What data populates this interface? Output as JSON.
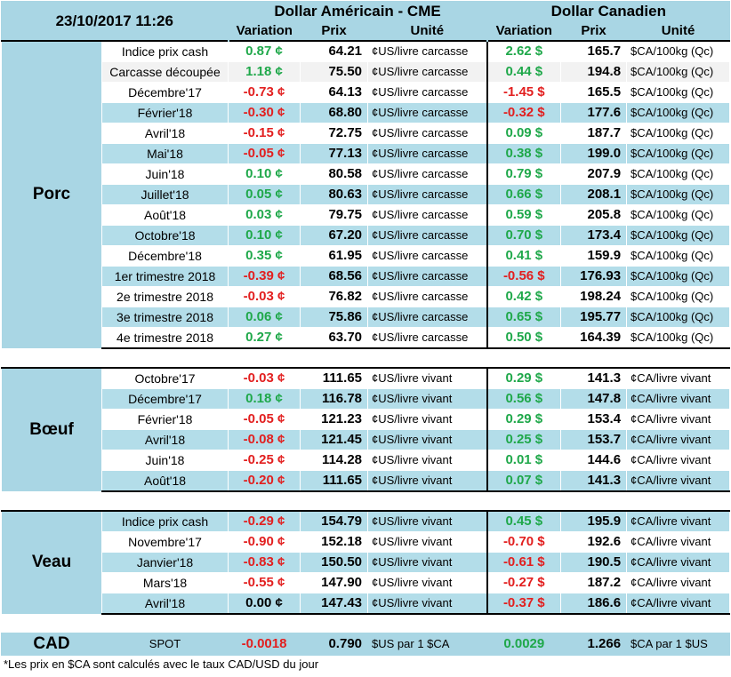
{
  "header": {
    "datetime": "23/10/2017 11:26",
    "us_title": "Dollar Américain - CME",
    "ca_title": "Dollar Canadien",
    "col_variation": "Variation",
    "col_prix": "Prix",
    "col_unite": "Unité"
  },
  "groups": {
    "porc": "Porc",
    "boeuf": "Bœuf",
    "veau": "Veau",
    "cad": "CAD"
  },
  "porc": [
    {
      "label": "Indice prix cash",
      "us_var": "0.87 ¢",
      "us_prix": "64.21",
      "us_unit": "¢US/livre carcasse",
      "ca_var": "2.62 $",
      "ca_prix": "165.7",
      "ca_unit": "$CA/100kg (Qc)"
    },
    {
      "label": "Carcasse découpée",
      "us_var": "1.18 ¢",
      "us_prix": "75.50",
      "us_unit": "¢US/livre carcasse",
      "ca_var": "0.44 $",
      "ca_prix": "194.8",
      "ca_unit": "$CA/100kg (Qc)"
    },
    {
      "label": "Décembre'17",
      "us_var": "-0.73 ¢",
      "us_prix": "64.13",
      "us_unit": "¢US/livre carcasse",
      "ca_var": "-1.45 $",
      "ca_prix": "165.5",
      "ca_unit": "$CA/100kg (Qc)"
    },
    {
      "label": "Février'18",
      "us_var": "-0.30 ¢",
      "us_prix": "68.80",
      "us_unit": "¢US/livre carcasse",
      "ca_var": "-0.32 $",
      "ca_prix": "177.6",
      "ca_unit": "$CA/100kg (Qc)"
    },
    {
      "label": "Avril'18",
      "us_var": "-0.15 ¢",
      "us_prix": "72.75",
      "us_unit": "¢US/livre carcasse",
      "ca_var": "0.09 $",
      "ca_prix": "187.7",
      "ca_unit": "$CA/100kg (Qc)"
    },
    {
      "label": "Mai'18",
      "us_var": "-0.05 ¢",
      "us_prix": "77.13",
      "us_unit": "¢US/livre carcasse",
      "ca_var": "0.38 $",
      "ca_prix": "199.0",
      "ca_unit": "$CA/100kg (Qc)"
    },
    {
      "label": "Juin'18",
      "us_var": "0.10 ¢",
      "us_prix": "80.58",
      "us_unit": "¢US/livre carcasse",
      "ca_var": "0.79 $",
      "ca_prix": "207.9",
      "ca_unit": "$CA/100kg (Qc)"
    },
    {
      "label": "Juillet'18",
      "us_var": "0.05 ¢",
      "us_prix": "80.63",
      "us_unit": "¢US/livre carcasse",
      "ca_var": "0.66 $",
      "ca_prix": "208.1",
      "ca_unit": "$CA/100kg (Qc)"
    },
    {
      "label": "Août'18",
      "us_var": "0.03 ¢",
      "us_prix": "79.75",
      "us_unit": "¢US/livre carcasse",
      "ca_var": "0.59 $",
      "ca_prix": "205.8",
      "ca_unit": "$CA/100kg (Qc)"
    },
    {
      "label": "Octobre'18",
      "us_var": "0.10 ¢",
      "us_prix": "67.20",
      "us_unit": "¢US/livre carcasse",
      "ca_var": "0.70 $",
      "ca_prix": "173.4",
      "ca_unit": "$CA/100kg (Qc)"
    },
    {
      "label": "Décembre'18",
      "us_var": "0.35 ¢",
      "us_prix": "61.95",
      "us_unit": "¢US/livre carcasse",
      "ca_var": "0.41 $",
      "ca_prix": "159.9",
      "ca_unit": "$CA/100kg (Qc)"
    },
    {
      "label": "1er trimestre 2018",
      "us_var": "-0.39 ¢",
      "us_prix": "68.56",
      "us_unit": "¢US/livre carcasse",
      "ca_var": "-0.56 $",
      "ca_prix": "176.93",
      "ca_unit": "$CA/100kg (Qc)"
    },
    {
      "label": "2e trimestre 2018",
      "us_var": "-0.03 ¢",
      "us_prix": "76.82",
      "us_unit": "¢US/livre carcasse",
      "ca_var": "0.42 $",
      "ca_prix": "198.24",
      "ca_unit": "$CA/100kg (Qc)"
    },
    {
      "label": "3e trimestre 2018",
      "us_var": "0.06 ¢",
      "us_prix": "75.86",
      "us_unit": "¢US/livre carcasse",
      "ca_var": "0.65 $",
      "ca_prix": "195.77",
      "ca_unit": "$CA/100kg (Qc)"
    },
    {
      "label": "4e trimestre 2018",
      "us_var": "0.27 ¢",
      "us_prix": "63.70",
      "us_unit": "¢US/livre carcasse",
      "ca_var": "0.50 $",
      "ca_prix": "164.39",
      "ca_unit": "$CA/100kg (Qc)"
    }
  ],
  "boeuf": [
    {
      "label": "Octobre'17",
      "us_var": "-0.03 ¢",
      "us_prix": "111.65",
      "us_unit": "¢US/livre vivant",
      "ca_var": "0.29 $",
      "ca_prix": "141.3",
      "ca_unit": "¢CA/livre vivant"
    },
    {
      "label": "Décembre'17",
      "us_var": "0.18 ¢",
      "us_prix": "116.78",
      "us_unit": "¢US/livre vivant",
      "ca_var": "0.56 $",
      "ca_prix": "147.8",
      "ca_unit": "¢CA/livre vivant"
    },
    {
      "label": "Février'18",
      "us_var": "-0.05 ¢",
      "us_prix": "121.23",
      "us_unit": "¢US/livre vivant",
      "ca_var": "0.29 $",
      "ca_prix": "153.4",
      "ca_unit": "¢CA/livre vivant"
    },
    {
      "label": "Avril'18",
      "us_var": "-0.08 ¢",
      "us_prix": "121.45",
      "us_unit": "¢US/livre vivant",
      "ca_var": "0.25 $",
      "ca_prix": "153.7",
      "ca_unit": "¢CA/livre vivant"
    },
    {
      "label": "Juin'18",
      "us_var": "-0.25 ¢",
      "us_prix": "114.28",
      "us_unit": "¢US/livre vivant",
      "ca_var": "0.01 $",
      "ca_prix": "144.6",
      "ca_unit": "¢CA/livre vivant"
    },
    {
      "label": "Août'18",
      "us_var": "-0.20 ¢",
      "us_prix": "111.65",
      "us_unit": "¢US/livre vivant",
      "ca_var": "0.07 $",
      "ca_prix": "141.3",
      "ca_unit": "¢CA/livre vivant"
    }
  ],
  "veau": [
    {
      "label": "Indice prix cash",
      "us_var": "-0.29 ¢",
      "us_prix": "154.79",
      "us_unit": "¢US/livre vivant",
      "ca_var": "0.45 $",
      "ca_prix": "195.9",
      "ca_unit": "¢CA/livre vivant"
    },
    {
      "label": "Novembre'17",
      "us_var": "-0.90 ¢",
      "us_prix": "152.18",
      "us_unit": "¢US/livre vivant",
      "ca_var": "-0.70 $",
      "ca_prix": "192.6",
      "ca_unit": "¢CA/livre vivant"
    },
    {
      "label": "Janvier'18",
      "us_var": "-0.83 ¢",
      "us_prix": "150.50",
      "us_unit": "¢US/livre vivant",
      "ca_var": "-0.61 $",
      "ca_prix": "190.5",
      "ca_unit": "¢CA/livre vivant"
    },
    {
      "label": "Mars'18",
      "us_var": "-0.55 ¢",
      "us_prix": "147.90",
      "us_unit": "¢US/livre vivant",
      "ca_var": "-0.27 $",
      "ca_prix": "187.2",
      "ca_unit": "¢CA/livre vivant"
    },
    {
      "label": "Avril'18",
      "us_var": "0.00 ¢",
      "us_prix": "147.43",
      "us_unit": "¢US/livre vivant",
      "ca_var": "-0.37 $",
      "ca_prix": "186.6",
      "ca_unit": "¢CA/livre vivant"
    }
  ],
  "cad": {
    "label": "SPOT",
    "us_var": "-0.0018",
    "us_prix": "0.790",
    "us_unit": "$US par 1 $CA",
    "ca_var": "0.0029",
    "ca_prix": "1.266",
    "ca_unit": "$CA par 1 $US"
  },
  "footnote": "*Les  prix en $CA sont calculés avec le taux CAD/USD du jour",
  "colors": {
    "header_bg": "#a9d6e4",
    "alt_row": "#b3dde9",
    "positive": "#1fa84a",
    "negative": "#e21f1f"
  }
}
